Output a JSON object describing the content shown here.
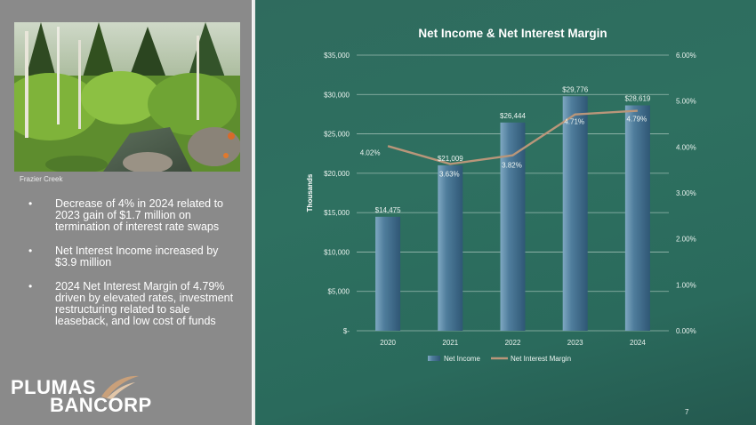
{
  "photo": {
    "caption": "Frazier Creek"
  },
  "bullets": [
    "Decrease of 4% in 2024 related to 2023 gain of $1.7 million on termination of interest rate swaps",
    "Net Interest Income increased by $3.9 million",
    "2024 Net Interest Margin of 4.79% driven by elevated rates, investment restructuring related to sale leaseback, and low cost of funds"
  ],
  "logo": {
    "line1": "PLUMAS",
    "line2": "BANCORP"
  },
  "page_number": "7",
  "colors": {
    "bar": "#3f6f8f",
    "line": "#b9967a",
    "panel": "#2e6f60"
  },
  "chart_data": {
    "type": "bar",
    "title": "Net Income & Net Interest Margin",
    "categories": [
      "2020",
      "2021",
      "2022",
      "2023",
      "2024"
    ],
    "ylabel": "Thousands",
    "ylim": [
      0,
      35000
    ],
    "y_ticks": [
      0,
      5000,
      10000,
      15000,
      20000,
      25000,
      30000,
      35000
    ],
    "y_tick_labels": [
      "$-",
      "$5,000",
      "$10,000",
      "$15,000",
      "$20,000",
      "$25,000",
      "$30,000",
      "$35,000"
    ],
    "y2lim": [
      0,
      6
    ],
    "y2_ticks": [
      0,
      1,
      2,
      3,
      4,
      5,
      6
    ],
    "y2_tick_labels": [
      "0.00%",
      "1.00%",
      "2.00%",
      "3.00%",
      "4.00%",
      "5.00%",
      "6.00%"
    ],
    "grid": true,
    "legend_position": "bottom",
    "series": [
      {
        "name": "Net Income",
        "type": "bar",
        "axis": "left",
        "values": [
          14475,
          21009,
          26444,
          29776,
          28619
        ],
        "labels": [
          "$14,475",
          "$21,009",
          "$26,444",
          "$29,776",
          "$28,619"
        ]
      },
      {
        "name": "Net Interest Margin",
        "type": "line",
        "axis": "right",
        "values": [
          4.02,
          3.63,
          3.82,
          4.71,
          4.79
        ],
        "labels": [
          "4.02%",
          "3.63%",
          "3.82%",
          "4.71%",
          "4.79%"
        ]
      }
    ]
  }
}
